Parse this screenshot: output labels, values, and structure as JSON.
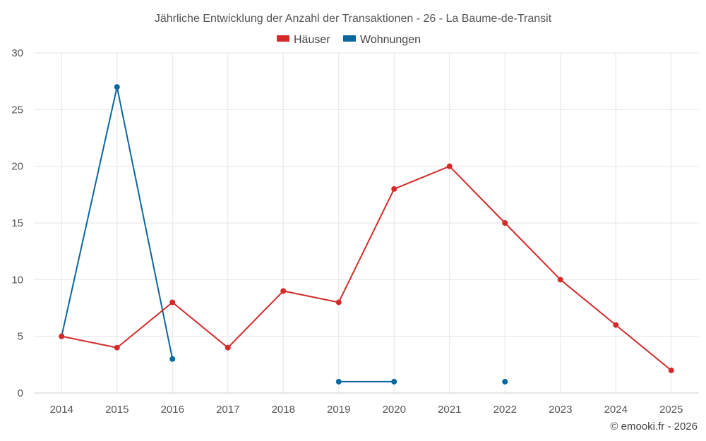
{
  "chart_data": {
    "type": "line",
    "title": "Jährliche Entwicklung der Anzahl der Transaktionen - 26 - La Baume-de-Transit",
    "categories": [
      "2014",
      "2015",
      "2016",
      "2017",
      "2018",
      "2019",
      "2020",
      "2021",
      "2022",
      "2023",
      "2024",
      "2025"
    ],
    "ylim": [
      0,
      30
    ],
    "yticks": [
      0,
      5,
      10,
      15,
      20,
      25,
      30
    ],
    "grid": true,
    "legend_position": "top-center",
    "series": [
      {
        "name": "Häuser",
        "color": "#d42a2a",
        "values": [
          5,
          4,
          8,
          4,
          9,
          8,
          18,
          20,
          15,
          10,
          6,
          2
        ]
      },
      {
        "name": "Wohnungen",
        "color": "#0a67a0",
        "values": [
          5,
          27,
          3,
          null,
          null,
          1,
          1,
          null,
          1,
          null,
          null,
          null
        ]
      }
    ],
    "credit": "© emooki.fr - 2026"
  }
}
